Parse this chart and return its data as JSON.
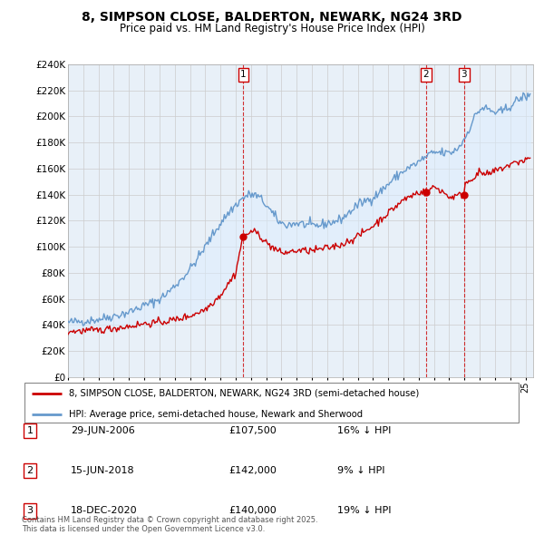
{
  "title": "8, SIMPSON CLOSE, BALDERTON, NEWARK, NG24 3RD",
  "subtitle": "Price paid vs. HM Land Registry's House Price Index (HPI)",
  "ylim": [
    0,
    240000
  ],
  "yticks": [
    0,
    20000,
    40000,
    60000,
    80000,
    100000,
    120000,
    140000,
    160000,
    180000,
    200000,
    220000,
    240000
  ],
  "sale_year_floats": [
    2006.5,
    2018.46,
    2020.96
  ],
  "sale_prices": [
    107500,
    142000,
    140000
  ],
  "sale_labels": [
    "1",
    "2",
    "3"
  ],
  "legend_line1": "8, SIMPSON CLOSE, BALDERTON, NEWARK, NG24 3RD (semi-detached house)",
  "legend_line2": "HPI: Average price, semi-detached house, Newark and Sherwood",
  "footer": "Contains HM Land Registry data © Crown copyright and database right 2025.\nThis data is licensed under the Open Government Licence v3.0.",
  "line_color_red": "#cc0000",
  "line_color_blue": "#6699cc",
  "fill_color_blue": "#ddeeff",
  "vline_color": "#cc0000",
  "grid_color": "#cccccc",
  "bg_color": "#e8f0f8",
  "table_rows": [
    [
      "1",
      "29-JUN-2006",
      "£107,500",
      "16% ↓ HPI"
    ],
    [
      "2",
      "15-JUN-2018",
      "£142,000",
      "9% ↓ HPI"
    ],
    [
      "3",
      "18-DEC-2020",
      "£140,000",
      "19% ↓ HPI"
    ]
  ]
}
